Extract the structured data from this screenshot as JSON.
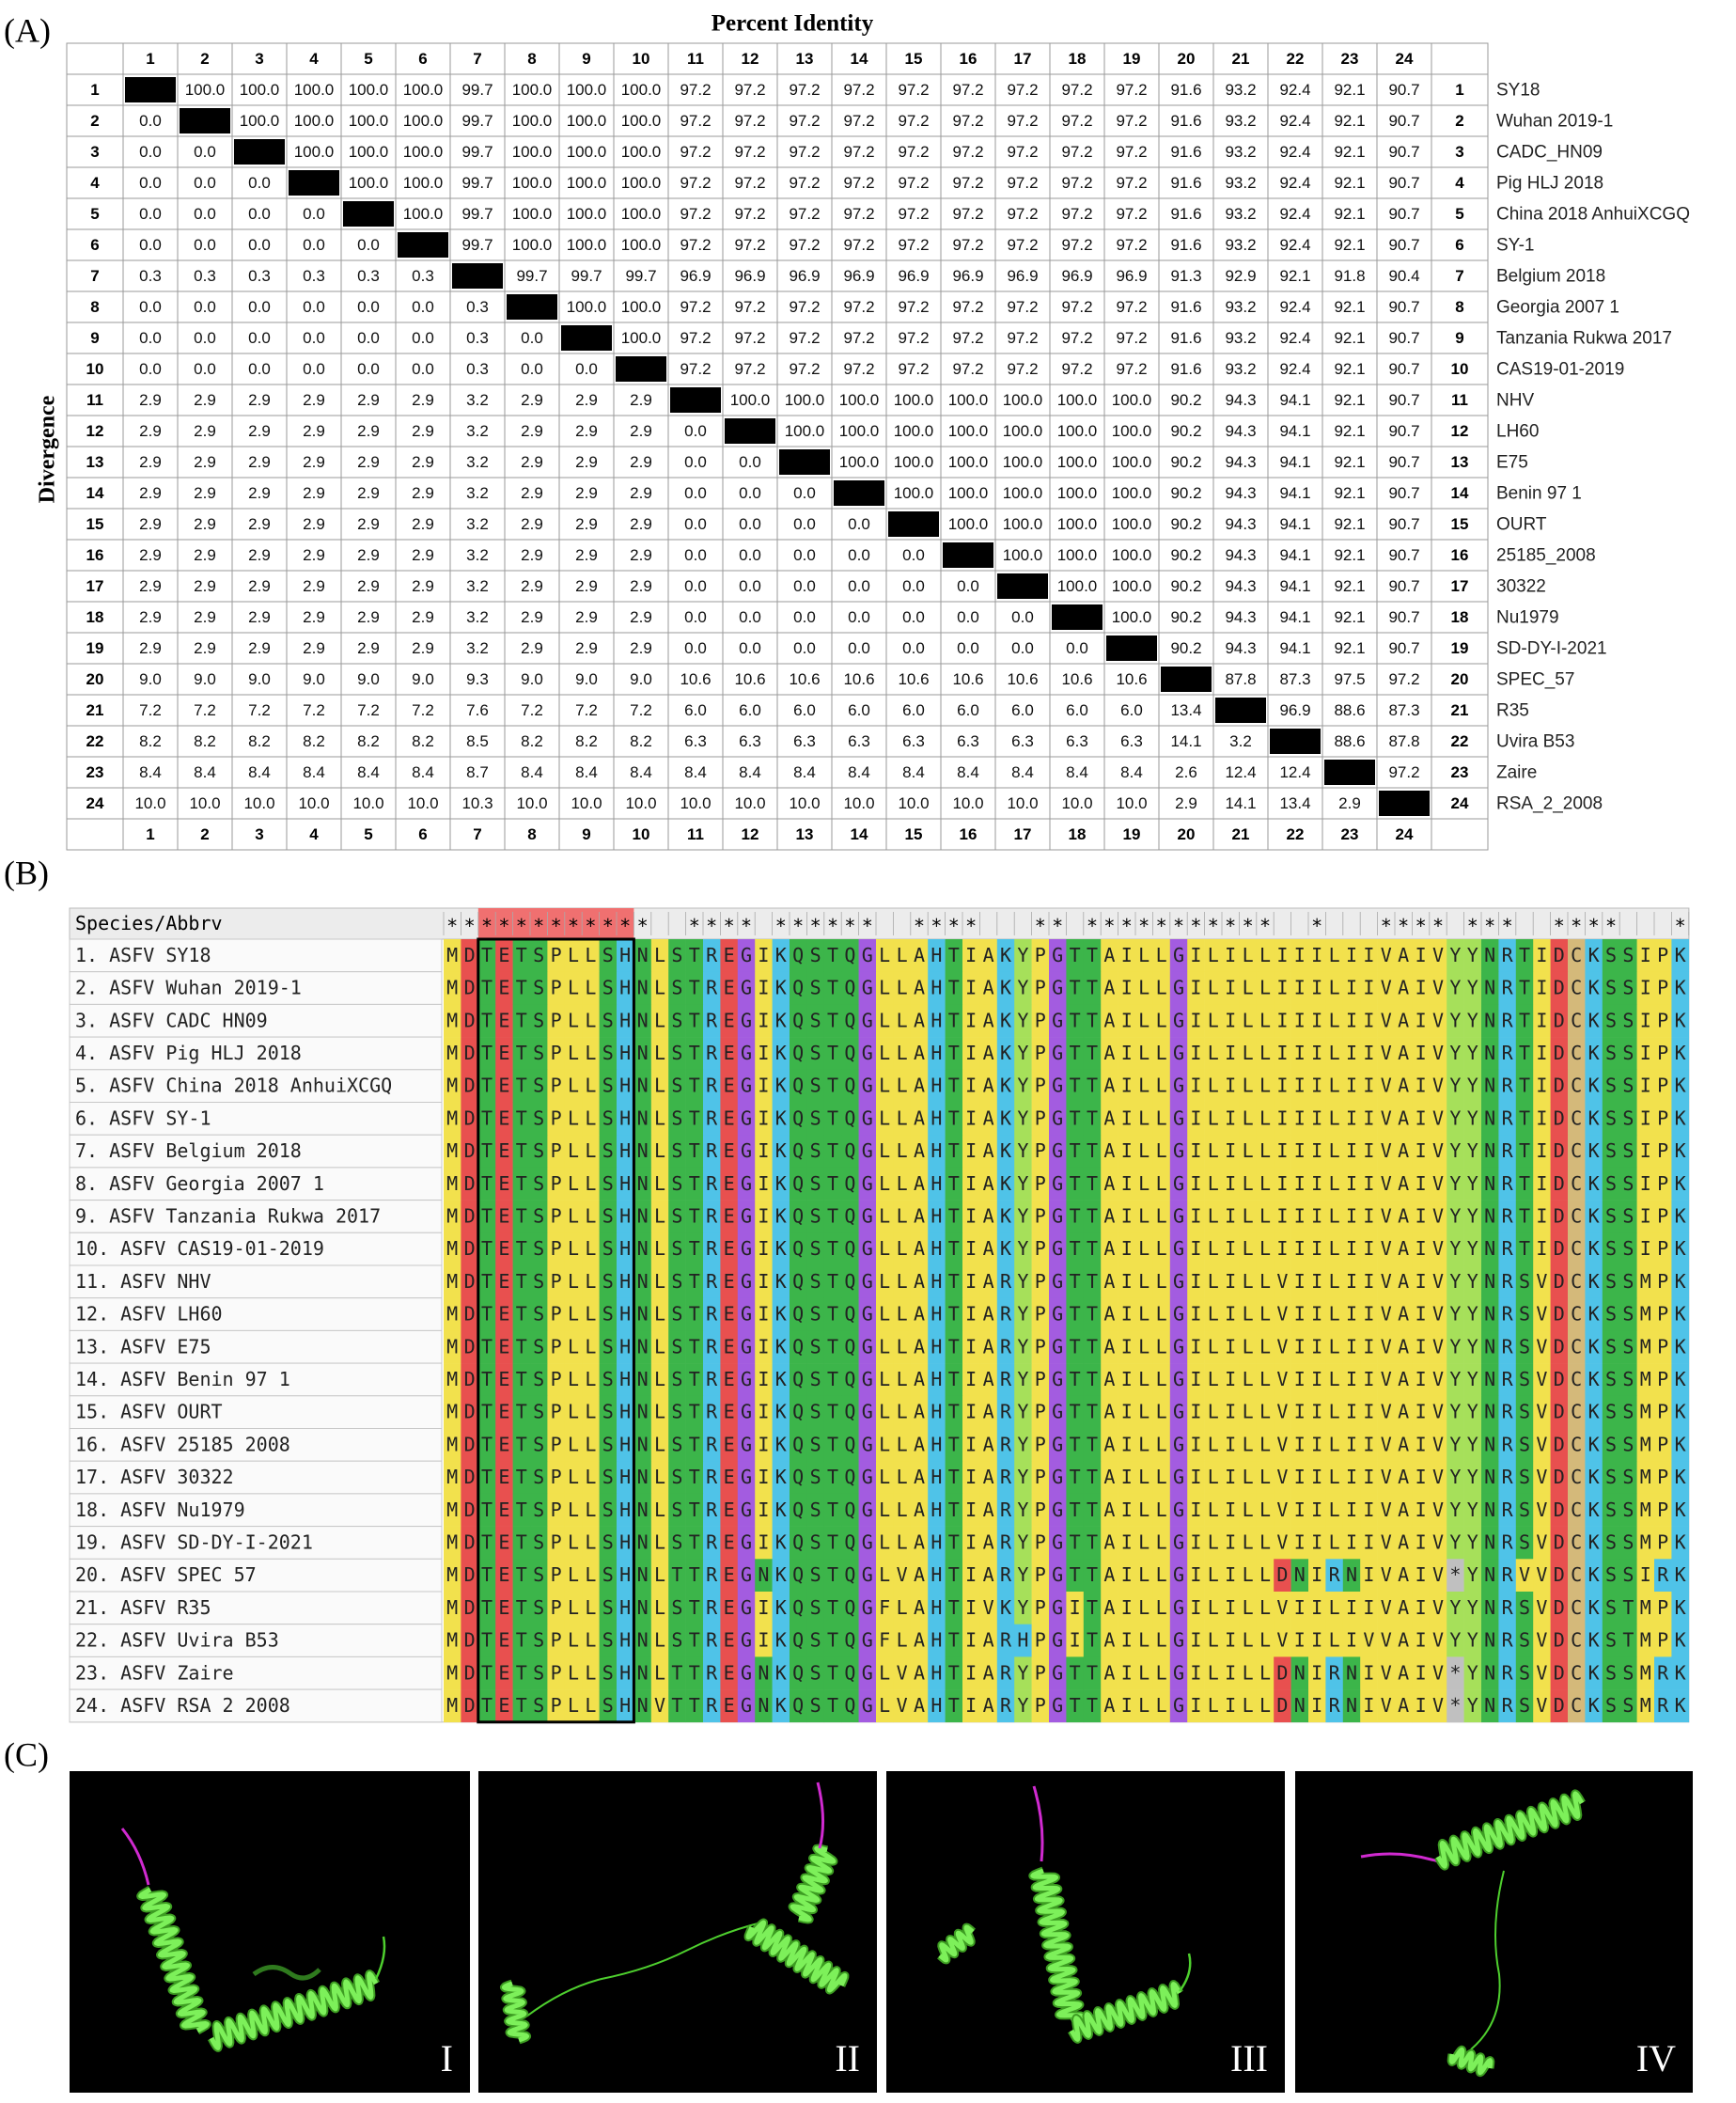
{
  "panel_a": {
    "label": "(A)",
    "title": "Percent Identity",
    "y_label": "Divergence",
    "indices": [
      1,
      2,
      3,
      4,
      5,
      6,
      7,
      8,
      9,
      10,
      11,
      12,
      13,
      14,
      15,
      16,
      17,
      18,
      19,
      20,
      21,
      22,
      23,
      24
    ],
    "names": [
      "SY18",
      "Wuhan 2019-1",
      "CADC_HN09",
      "Pig HLJ 2018",
      "China 2018 AnhuiXCGQ",
      "SY-1",
      "Belgium 2018",
      "Georgia 2007 1",
      "Tanzania Rukwa 2017",
      "CAS19-01-2019",
      "NHV",
      "LH60",
      "E75",
      "Benin 97 1",
      "OURT",
      "25185_2008",
      "30322",
      "Nu1979",
      "SD-DY-I-2021",
      "SPEC_57",
      "R35",
      "Uvira B53",
      "Zaire",
      "RSA_2_2008"
    ],
    "matrix": [
      [
        null,
        "100.0",
        "100.0",
        "100.0",
        "100.0",
        "100.0",
        "99.7",
        "100.0",
        "100.0",
        "100.0",
        "97.2",
        "97.2",
        "97.2",
        "97.2",
        "97.2",
        "97.2",
        "97.2",
        "97.2",
        "97.2",
        "91.6",
        "93.2",
        "92.4",
        "92.1",
        "90.7"
      ],
      [
        "0.0",
        null,
        "100.0",
        "100.0",
        "100.0",
        "100.0",
        "99.7",
        "100.0",
        "100.0",
        "100.0",
        "97.2",
        "97.2",
        "97.2",
        "97.2",
        "97.2",
        "97.2",
        "97.2",
        "97.2",
        "97.2",
        "91.6",
        "93.2",
        "92.4",
        "92.1",
        "90.7"
      ],
      [
        "0.0",
        "0.0",
        null,
        "100.0",
        "100.0",
        "100.0",
        "99.7",
        "100.0",
        "100.0",
        "100.0",
        "97.2",
        "97.2",
        "97.2",
        "97.2",
        "97.2",
        "97.2",
        "97.2",
        "97.2",
        "97.2",
        "91.6",
        "93.2",
        "92.4",
        "92.1",
        "90.7"
      ],
      [
        "0.0",
        "0.0",
        "0.0",
        null,
        "100.0",
        "100.0",
        "99.7",
        "100.0",
        "100.0",
        "100.0",
        "97.2",
        "97.2",
        "97.2",
        "97.2",
        "97.2",
        "97.2",
        "97.2",
        "97.2",
        "97.2",
        "91.6",
        "93.2",
        "92.4",
        "92.1",
        "90.7"
      ],
      [
        "0.0",
        "0.0",
        "0.0",
        "0.0",
        null,
        "100.0",
        "99.7",
        "100.0",
        "100.0",
        "100.0",
        "97.2",
        "97.2",
        "97.2",
        "97.2",
        "97.2",
        "97.2",
        "97.2",
        "97.2",
        "97.2",
        "91.6",
        "93.2",
        "92.4",
        "92.1",
        "90.7"
      ],
      [
        "0.0",
        "0.0",
        "0.0",
        "0.0",
        "0.0",
        null,
        "99.7",
        "100.0",
        "100.0",
        "100.0",
        "97.2",
        "97.2",
        "97.2",
        "97.2",
        "97.2",
        "97.2",
        "97.2",
        "97.2",
        "97.2",
        "91.6",
        "93.2",
        "92.4",
        "92.1",
        "90.7"
      ],
      [
        "0.3",
        "0.3",
        "0.3",
        "0.3",
        "0.3",
        "0.3",
        null,
        "99.7",
        "99.7",
        "99.7",
        "96.9",
        "96.9",
        "96.9",
        "96.9",
        "96.9",
        "96.9",
        "96.9",
        "96.9",
        "96.9",
        "91.3",
        "92.9",
        "92.1",
        "91.8",
        "90.4"
      ],
      [
        "0.0",
        "0.0",
        "0.0",
        "0.0",
        "0.0",
        "0.0",
        "0.3",
        null,
        "100.0",
        "100.0",
        "97.2",
        "97.2",
        "97.2",
        "97.2",
        "97.2",
        "97.2",
        "97.2",
        "97.2",
        "97.2",
        "91.6",
        "93.2",
        "92.4",
        "92.1",
        "90.7"
      ],
      [
        "0.0",
        "0.0",
        "0.0",
        "0.0",
        "0.0",
        "0.0",
        "0.3",
        "0.0",
        null,
        "100.0",
        "97.2",
        "97.2",
        "97.2",
        "97.2",
        "97.2",
        "97.2",
        "97.2",
        "97.2",
        "97.2",
        "91.6",
        "93.2",
        "92.4",
        "92.1",
        "90.7"
      ],
      [
        "0.0",
        "0.0",
        "0.0",
        "0.0",
        "0.0",
        "0.0",
        "0.3",
        "0.0",
        "0.0",
        null,
        "97.2",
        "97.2",
        "97.2",
        "97.2",
        "97.2",
        "97.2",
        "97.2",
        "97.2",
        "97.2",
        "91.6",
        "93.2",
        "92.4",
        "92.1",
        "90.7"
      ],
      [
        "2.9",
        "2.9",
        "2.9",
        "2.9",
        "2.9",
        "2.9",
        "3.2",
        "2.9",
        "2.9",
        "2.9",
        null,
        "100.0",
        "100.0",
        "100.0",
        "100.0",
        "100.0",
        "100.0",
        "100.0",
        "100.0",
        "90.2",
        "94.3",
        "94.1",
        "92.1",
        "90.7"
      ],
      [
        "2.9",
        "2.9",
        "2.9",
        "2.9",
        "2.9",
        "2.9",
        "3.2",
        "2.9",
        "2.9",
        "2.9",
        "0.0",
        null,
        "100.0",
        "100.0",
        "100.0",
        "100.0",
        "100.0",
        "100.0",
        "100.0",
        "90.2",
        "94.3",
        "94.1",
        "92.1",
        "90.7"
      ],
      [
        "2.9",
        "2.9",
        "2.9",
        "2.9",
        "2.9",
        "2.9",
        "3.2",
        "2.9",
        "2.9",
        "2.9",
        "0.0",
        "0.0",
        null,
        "100.0",
        "100.0",
        "100.0",
        "100.0",
        "100.0",
        "100.0",
        "90.2",
        "94.3",
        "94.1",
        "92.1",
        "90.7"
      ],
      [
        "2.9",
        "2.9",
        "2.9",
        "2.9",
        "2.9",
        "2.9",
        "3.2",
        "2.9",
        "2.9",
        "2.9",
        "0.0",
        "0.0",
        "0.0",
        null,
        "100.0",
        "100.0",
        "100.0",
        "100.0",
        "100.0",
        "90.2",
        "94.3",
        "94.1",
        "92.1",
        "90.7"
      ],
      [
        "2.9",
        "2.9",
        "2.9",
        "2.9",
        "2.9",
        "2.9",
        "3.2",
        "2.9",
        "2.9",
        "2.9",
        "0.0",
        "0.0",
        "0.0",
        "0.0",
        null,
        "100.0",
        "100.0",
        "100.0",
        "100.0",
        "90.2",
        "94.3",
        "94.1",
        "92.1",
        "90.7"
      ],
      [
        "2.9",
        "2.9",
        "2.9",
        "2.9",
        "2.9",
        "2.9",
        "3.2",
        "2.9",
        "2.9",
        "2.9",
        "0.0",
        "0.0",
        "0.0",
        "0.0",
        "0.0",
        null,
        "100.0",
        "100.0",
        "100.0",
        "90.2",
        "94.3",
        "94.1",
        "92.1",
        "90.7"
      ],
      [
        "2.9",
        "2.9",
        "2.9",
        "2.9",
        "2.9",
        "2.9",
        "3.2",
        "2.9",
        "2.9",
        "2.9",
        "0.0",
        "0.0",
        "0.0",
        "0.0",
        "0.0",
        "0.0",
        null,
        "100.0",
        "100.0",
        "90.2",
        "94.3",
        "94.1",
        "92.1",
        "90.7"
      ],
      [
        "2.9",
        "2.9",
        "2.9",
        "2.9",
        "2.9",
        "2.9",
        "3.2",
        "2.9",
        "2.9",
        "2.9",
        "0.0",
        "0.0",
        "0.0",
        "0.0",
        "0.0",
        "0.0",
        "0.0",
        null,
        "100.0",
        "90.2",
        "94.3",
        "94.1",
        "92.1",
        "90.7"
      ],
      [
        "2.9",
        "2.9",
        "2.9",
        "2.9",
        "2.9",
        "2.9",
        "3.2",
        "2.9",
        "2.9",
        "2.9",
        "0.0",
        "0.0",
        "0.0",
        "0.0",
        "0.0",
        "0.0",
        "0.0",
        "0.0",
        null,
        "90.2",
        "94.3",
        "94.1",
        "92.1",
        "90.7"
      ],
      [
        "9.0",
        "9.0",
        "9.0",
        "9.0",
        "9.0",
        "9.0",
        "9.3",
        "9.0",
        "9.0",
        "9.0",
        "10.6",
        "10.6",
        "10.6",
        "10.6",
        "10.6",
        "10.6",
        "10.6",
        "10.6",
        "10.6",
        null,
        "87.8",
        "87.3",
        "97.5",
        "97.2"
      ],
      [
        "7.2",
        "7.2",
        "7.2",
        "7.2",
        "7.2",
        "7.2",
        "7.6",
        "7.2",
        "7.2",
        "7.2",
        "6.0",
        "6.0",
        "6.0",
        "6.0",
        "6.0",
        "6.0",
        "6.0",
        "6.0",
        "6.0",
        "13.4",
        null,
        "96.9",
        "88.6",
        "87.3"
      ],
      [
        "8.2",
        "8.2",
        "8.2",
        "8.2",
        "8.2",
        "8.2",
        "8.5",
        "8.2",
        "8.2",
        "8.2",
        "6.3",
        "6.3",
        "6.3",
        "6.3",
        "6.3",
        "6.3",
        "6.3",
        "6.3",
        "6.3",
        "14.1",
        "3.2",
        null,
        "88.6",
        "87.8"
      ],
      [
        "8.4",
        "8.4",
        "8.4",
        "8.4",
        "8.4",
        "8.4",
        "8.7",
        "8.4",
        "8.4",
        "8.4",
        "8.4",
        "8.4",
        "8.4",
        "8.4",
        "8.4",
        "8.4",
        "8.4",
        "8.4",
        "8.4",
        "2.6",
        "12.4",
        "12.4",
        null,
        "97.2"
      ],
      [
        "10.0",
        "10.0",
        "10.0",
        "10.0",
        "10.0",
        "10.0",
        "10.3",
        "10.0",
        "10.0",
        "10.0",
        "10.0",
        "10.0",
        "10.0",
        "10.0",
        "10.0",
        "10.0",
        "10.0",
        "10.0",
        "10.0",
        "2.9",
        "14.1",
        "13.4",
        "2.9",
        null
      ]
    ]
  },
  "panel_b": {
    "label": "(B)",
    "header": "Species/Abbrv",
    "conservation": "************  **** ******  ****   ** ***********  *   **** ***  ****   *",
    "highlight_columns": [
      3,
      11
    ],
    "residue_colors": {
      "A": "#f2e14d",
      "I": "#f2e14d",
      "L": "#f2e14d",
      "M": "#f2e14d",
      "V": "#f2e14d",
      "F": "#f2e14d",
      "P": "#f2e14d",
      "W": "#f2e14d",
      "D": "#e8504f",
      "E": "#e8504f",
      "S": "#3cb54a",
      "T": "#3cb54a",
      "N": "#3cb54a",
      "Q": "#3cb54a",
      "H": "#4fc3e8",
      "K": "#4fc3e8",
      "R": "#4fc3e8",
      "G": "#a35ce0",
      "Y": "#a6e05a",
      "C": "#d4b97a",
      "*": "#c0c0c0"
    },
    "rows": [
      {
        "name": "1. ASFV SY18",
        "sequence": "MDTETSPLLSHNLSTREGIKQSTQGLLAHTIAKYPGTTAILLGILILLIIILIIVAIVYYNRTIDCKSSIPK"
      },
      {
        "name": "2. ASFV Wuhan 2019-1",
        "sequence": "MDTETSPLLSHNLSTREGIKQSTQGLLAHTIAKYPGTTAILLGILILLIIILIIVAIVYYNRTIDCKSSIPK"
      },
      {
        "name": "3. ASFV CADC HN09",
        "sequence": "MDTETSPLLSHNLSTREGIKQSTQGLLAHTIAKYPGTTAILLGILILLIIILIIVAIVYYNRTIDCKSSIPK"
      },
      {
        "name": "4. ASFV Pig HLJ 2018",
        "sequence": "MDTETSPLLSHNLSTREGIKQSTQGLLAHTIAKYPGTTAILLGILILLIIILIIVAIVYYNRTIDCKSSIPK"
      },
      {
        "name": "5. ASFV China 2018 AnhuiXCGQ",
        "sequence": "MDTETSPLLSHNLSTREGIKQSTQGLLAHTIAKYPGTTAILLGILILLIIILIIVAIVYYNRTIDCKSSIPK"
      },
      {
        "name": "6. ASFV SY-1",
        "sequence": "MDTETSPLLSHNLSTREGIKQSTQGLLAHTIAKYPGTTAILLGILILLIIILIIVAIVYYNRTIDCKSSIPK"
      },
      {
        "name": "7. ASFV Belgium 2018",
        "sequence": "MDTETSPLLSHNLSTREGIKQSTQGLLAHTIAKYPGTTAILLGILILLIIILIIVAIVYYNRTIDCKSSIPK"
      },
      {
        "name": "8. ASFV Georgia 2007 1",
        "sequence": "MDTETSPLLSHNLSTREGIKQSTQGLLAHTIAKYPGTTAILLGILILLIIILIIVAIVYYNRTIDCKSSIPK"
      },
      {
        "name": "9. ASFV Tanzania Rukwa 2017",
        "sequence": "MDTETSPLLSHNLSTREGIKQSTQGLLAHTIAKYPGTTAILLGILILLIIILIIVAIVYYNRTIDCKSSIPK"
      },
      {
        "name": "10. ASFV CAS19-01-2019",
        "sequence": "MDTETSPLLSHNLSTREGIKQSTQGLLAHTIAKYPGTTAILLGILILLIIILIIVAIVYYNRTIDCKSSIPK"
      },
      {
        "name": "11. ASFV NHV",
        "sequence": "MDTETSPLLSHNLSTREGIKQSTQGLLAHTIARYPGTTAILLGILILLVIILIIVAIVYYNRSVDCKSSMPK"
      },
      {
        "name": "12. ASFV LH60",
        "sequence": "MDTETSPLLSHNLSTREGIKQSTQGLLAHTIARYPGTTAILLGILILLVIILIIVAIVYYNRSVDCKSSMPK"
      },
      {
        "name": "13. ASFV E75",
        "sequence": "MDTETSPLLSHNLSTREGIKQSTQGLLAHTIARYPGTTAILLGILILLVIILIIVAIVYYNRSVDCKSSMPK"
      },
      {
        "name": "14. ASFV Benin 97 1",
        "sequence": "MDTETSPLLSHNLSTREGIKQSTQGLLAHTIARYPGTTAILLGILILLVIILIIVAIVYYNRSVDCKSSMPK"
      },
      {
        "name": "15. ASFV OURT",
        "sequence": "MDTETSPLLSHNLSTREGIKQSTQGLLAHTIARYPGTTAILLGILILLVIILIIVAIVYYNRSVDCKSSMPK"
      },
      {
        "name": "16. ASFV 25185 2008",
        "sequence": "MDTETSPLLSHNLSTREGIKQSTQGLLAHTIARYPGTTAILLGILILLVIILIIVAIVYYNRSVDCKSSMPK"
      },
      {
        "name": "17. ASFV 30322",
        "sequence": "MDTETSPLLSHNLSTREGIKQSTQGLLAHTIARYPGTTAILLGILILLVIILIIVAIVYYNRSVDCKSSMPK"
      },
      {
        "name": "18. ASFV Nu1979",
        "sequence": "MDTETSPLLSHNLSTREGIKQSTQGLLAHTIARYPGTTAILLGILILLVIILIIVAIVYYNRSVDCKSSMPK"
      },
      {
        "name": "19. ASFV SD-DY-I-2021",
        "sequence": "MDTETSPLLSHNLSTREGIKQSTQGLLAHTIARYPGTTAILLGILILLVIILIIVAIVYYNRSVDCKSSMPK"
      },
      {
        "name": "20. ASFV SPEC 57",
        "sequence": "MDTETSPLLSHNLTTREGNKQSTQGLVAHTIARYPGTTAILLGILILLDNIRNIVAIV*YNRVVDCKSSIRK"
      },
      {
        "name": "21. ASFV R35",
        "sequence": "MDTETSPLLSHNLSTREGIKQSTQGFLAHTIVKYPGITAILLGILILLVIILIIVAIVYYNRSVDCKSTMPK"
      },
      {
        "name": "22. ASFV Uvira B53",
        "sequence": "MDTETSPLLSHNLSTREGIKQSTQGFLAHTIARHPGITAILLGILILLVIILIVVAIVYYNRSVDCKSTMPK"
      },
      {
        "name": "23. ASFV Zaire",
        "sequence": "MDTETSPLLSHNLTTREGNKQSTQGLVAHTIARYPGTTAILLGILILLDNIRNIVAIV*YNRSVDCKSSMRK"
      },
      {
        "name": "24. ASFV RSA 2 2008",
        "sequence": "MDTETSPLLSHNVTTREGNKQSTQGLVAHTIARYPGTTAILLGILILLDNIRNIVAIV*YNRSVDCKSSMRK"
      }
    ]
  },
  "panel_c": {
    "label": "(C)",
    "views": [
      "I",
      "II",
      "III",
      "IV"
    ]
  }
}
